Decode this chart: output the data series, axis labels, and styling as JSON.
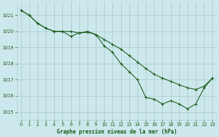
{
  "title": "Graphe pression niveau de la mer (hPa)",
  "background_color": "#cce8ec",
  "grid_color": "#aacccc",
  "line_color": "#1a5c1a",
  "xlim": [
    -0.5,
    23.5
  ],
  "ylim": [
    1014.5,
    1021.8
  ],
  "yticks": [
    1015,
    1016,
    1017,
    1018,
    1019,
    1020,
    1021
  ],
  "xticks": [
    0,
    1,
    2,
    3,
    4,
    5,
    6,
    7,
    8,
    9,
    10,
    11,
    12,
    13,
    14,
    15,
    16,
    17,
    18,
    19,
    20,
    21,
    22,
    23
  ],
  "series1_x": [
    0,
    1,
    2,
    3,
    4,
    5,
    6,
    7,
    8,
    9,
    10,
    11,
    12,
    13,
    14,
    15,
    16,
    17,
    18,
    19,
    20,
    21,
    22,
    23
  ],
  "series1_y": [
    1021.3,
    1021.0,
    1020.5,
    1020.2,
    1020.0,
    1020.0,
    1020.0,
    1019.9,
    1019.95,
    1019.8,
    1019.5,
    1019.2,
    1018.9,
    1018.5,
    1018.1,
    1017.7,
    1017.35,
    1017.1,
    1016.9,
    1016.7,
    1016.5,
    1016.4,
    1016.6,
    1017.1
  ],
  "series2_x": [
    0,
    1,
    2,
    3,
    4,
    5,
    6,
    7,
    8,
    9,
    10,
    11,
    12,
    13,
    14,
    15,
    16,
    17,
    18,
    19,
    20,
    21,
    22,
    23
  ],
  "series2_y": [
    1021.3,
    1021.0,
    1020.5,
    1020.2,
    1020.0,
    1020.0,
    1019.7,
    1019.9,
    1020.0,
    1019.8,
    1019.1,
    1018.7,
    1018.0,
    1017.5,
    1017.0,
    1015.9,
    1015.8,
    1015.5,
    1015.7,
    1015.5,
    1015.2,
    1015.5,
    1016.5,
    1017.1
  ]
}
